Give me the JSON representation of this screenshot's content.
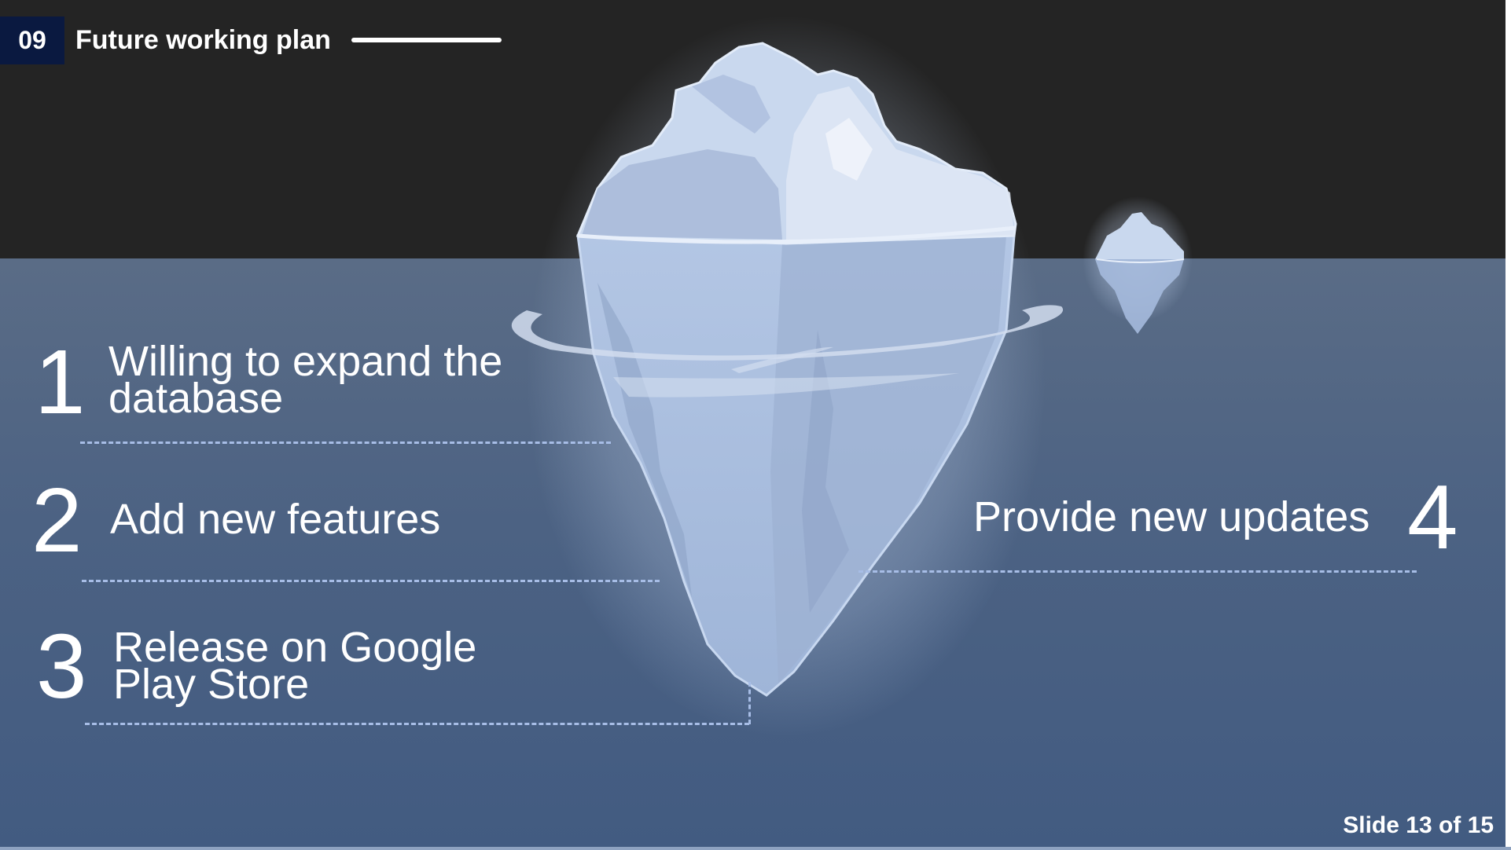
{
  "header": {
    "section_number": "09",
    "title": "Future working plan"
  },
  "items": [
    {
      "number": "1",
      "text": "Willing to expand the database"
    },
    {
      "number": "2",
      "text": "Add new features"
    },
    {
      "number": "3",
      "text": "Release on Google Play Store"
    },
    {
      "number": "4",
      "text": "Provide new updates"
    }
  ],
  "footer": {
    "slide_counter": "Slide 13 of 15"
  },
  "colors": {
    "sky": "#242424",
    "sea": "#4c6283",
    "badge": "#0a1940",
    "ice": "#b4c8e6",
    "dash": "#a7bde6"
  },
  "icons": [
    "iceberg-illustration",
    "small-iceberg-illustration"
  ]
}
